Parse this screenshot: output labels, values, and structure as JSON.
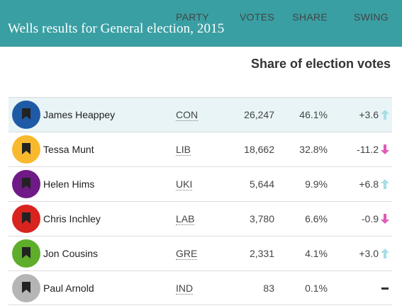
{
  "header": {
    "title": "Wells results for General election, 2015"
  },
  "subtitle": "Share of election votes",
  "columns": {
    "party": "PARTY",
    "votes": "VOTES",
    "share": "SHARE",
    "swing": "SWING"
  },
  "rows": [
    {
      "name": "James Heappey",
      "party": "CON",
      "votes": "26,247",
      "share": "46.1%",
      "swing": "+3.6",
      "direction": "up",
      "color": "#1f5aa6",
      "winner": true
    },
    {
      "name": "Tessa Munt",
      "party": "LIB",
      "votes": "18,662",
      "share": "32.8%",
      "swing": "-11.2",
      "direction": "down",
      "color": "#f9b92e",
      "winner": false
    },
    {
      "name": "Helen Hims",
      "party": "UKI",
      "votes": "5,644",
      "share": "9.9%",
      "swing": "+6.8",
      "direction": "up",
      "color": "#6f1a86",
      "winner": false
    },
    {
      "name": "Chris Inchley",
      "party": "LAB",
      "votes": "3,780",
      "share": "6.6%",
      "swing": "-0.9",
      "direction": "down",
      "color": "#d9231f",
      "winner": false
    },
    {
      "name": "Jon Cousins",
      "party": "GRE",
      "votes": "2,331",
      "share": "4.1%",
      "swing": "+3.0",
      "direction": "up",
      "color": "#5fae2b",
      "winner": false
    },
    {
      "name": "Paul Arnold",
      "party": "IND",
      "votes": "83",
      "share": "0.1%",
      "swing": "",
      "direction": "none",
      "color": "#b5b5b5",
      "winner": false
    }
  ],
  "colors": {
    "up_arrow": "#a8dde6",
    "down_arrow": "#e05bb5",
    "header_bg": "#3a9fa3",
    "winner_bg": "#e8f4f6"
  }
}
